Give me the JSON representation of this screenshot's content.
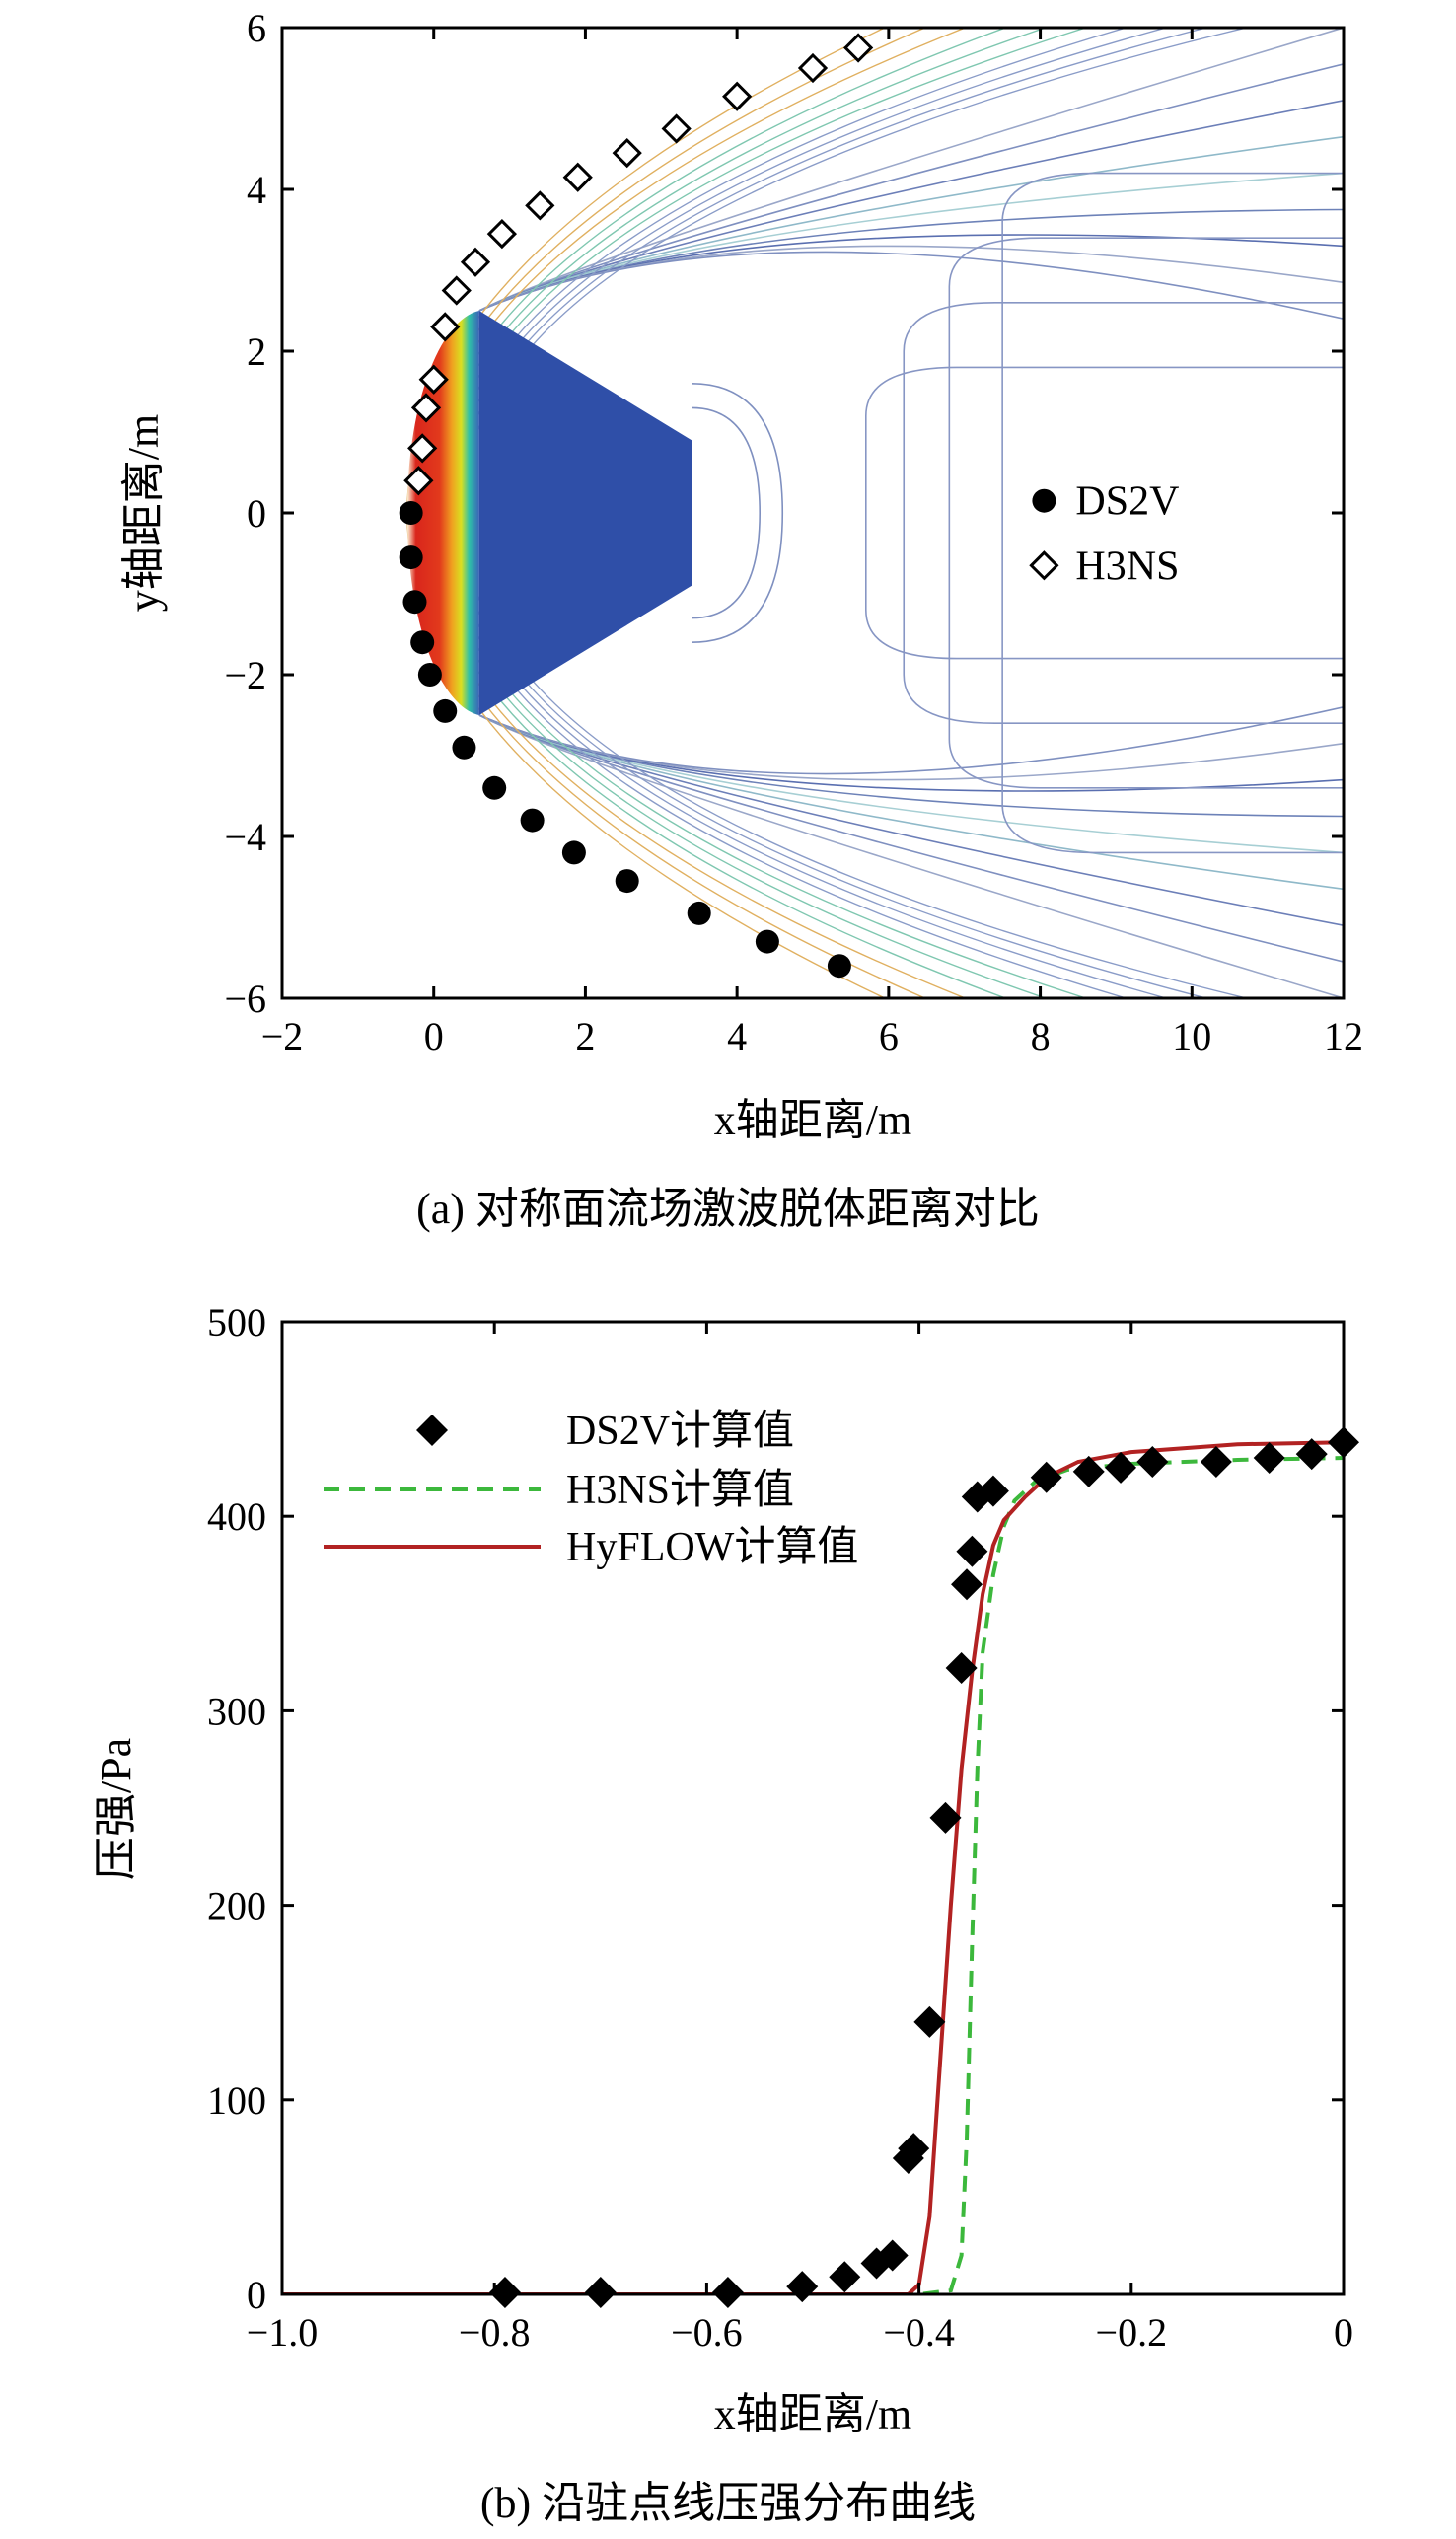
{
  "charts": [
    {
      "caption": "(a) 对称面流场激波脱体距离对比",
      "chart_data": {
        "type": "scatter",
        "title": "",
        "xlabel": "x轴距离/m",
        "ylabel": "y轴距离/m",
        "xlim": [
          -2,
          12
        ],
        "ylim": [
          -6,
          6
        ],
        "x_ticks": [
          -2,
          0,
          2,
          4,
          6,
          8,
          10,
          12
        ],
        "y_ticks": [
          -6,
          -4,
          -2,
          0,
          2,
          4,
          6
        ],
        "legend_position": "right",
        "background": "contour plot of flow field with vehicle body",
        "series": [
          {
            "name": "DS2V",
            "marker": "filled-circle",
            "color": "#000000",
            "points": [
              [
                -0.3,
                0.0
              ],
              [
                -0.3,
                -0.55
              ],
              [
                -0.25,
                -1.1
              ],
              [
                -0.15,
                -1.6
              ],
              [
                -0.05,
                -2.0
              ],
              [
                0.15,
                -2.45
              ],
              [
                0.4,
                -2.9
              ],
              [
                0.8,
                -3.4
              ],
              [
                1.3,
                -3.8
              ],
              [
                1.85,
                -4.2
              ],
              [
                2.55,
                -4.55
              ],
              [
                3.5,
                -4.95
              ],
              [
                4.4,
                -5.3
              ],
              [
                5.35,
                -5.6
              ]
            ]
          },
          {
            "name": "H3NS",
            "marker": "open-diamond",
            "color": "#000000",
            "points": [
              [
                -0.2,
                0.4
              ],
              [
                -0.15,
                0.8
              ],
              [
                -0.1,
                1.3
              ],
              [
                0.0,
                1.65
              ],
              [
                0.15,
                2.3
              ],
              [
                0.3,
                2.75
              ],
              [
                0.55,
                3.1
              ],
              [
                0.9,
                3.45
              ],
              [
                1.4,
                3.8
              ],
              [
                1.9,
                4.15
              ],
              [
                2.55,
                4.45
              ],
              [
                3.2,
                4.75
              ],
              [
                4.0,
                5.15
              ],
              [
                5.0,
                5.5
              ],
              [
                5.6,
                5.75
              ]
            ]
          }
        ]
      }
    },
    {
      "caption": "(b) 沿驻点线压强分布曲线",
      "chart_data": {
        "type": "line",
        "title": "",
        "xlabel": "x轴距离/m",
        "ylabel": "压强/Pa",
        "xlim": [
          -1.0,
          0
        ],
        "ylim": [
          0,
          500
        ],
        "x_ticks": [
          -1.0,
          -0.8,
          -0.6,
          -0.4,
          -0.2,
          0
        ],
        "x_tick_labels": [
          "−1.0",
          "−0.8",
          "−0.6",
          "−0.4",
          "−0.2",
          "0"
        ],
        "y_ticks": [
          0,
          100,
          200,
          300,
          400,
          500
        ],
        "legend_position": "top-left",
        "series": [
          {
            "name": "DS2V计算值",
            "style": "filled-diamond",
            "color": "#000000",
            "points": [
              [
                -0.79,
                1
              ],
              [
                -0.7,
                1
              ],
              [
                -0.58,
                1
              ],
              [
                -0.51,
                4
              ],
              [
                -0.47,
                9
              ],
              [
                -0.44,
                16
              ],
              [
                -0.425,
                20
              ],
              [
                -0.41,
                70
              ],
              [
                -0.405,
                75
              ],
              [
                -0.39,
                140
              ],
              [
                -0.375,
                245
              ],
              [
                -0.36,
                322
              ],
              [
                -0.355,
                365
              ],
              [
                -0.35,
                382
              ],
              [
                -0.345,
                410
              ],
              [
                -0.33,
                413
              ],
              [
                -0.28,
                420
              ],
              [
                -0.24,
                423
              ],
              [
                -0.21,
                425
              ],
              [
                -0.18,
                428
              ],
              [
                -0.12,
                428
              ],
              [
                -0.07,
                430
              ],
              [
                -0.03,
                432
              ],
              [
                0.0,
                438
              ]
            ]
          },
          {
            "name": "H3NS计算值",
            "style": "dashed",
            "color": "#3cb83c",
            "points": [
              [
                -1.0,
                0
              ],
              [
                -0.4,
                0
              ],
              [
                -0.37,
                2
              ],
              [
                -0.36,
                20
              ],
              [
                -0.355,
                80
              ],
              [
                -0.35,
                180
              ],
              [
                -0.345,
                270
              ],
              [
                -0.34,
                330
              ],
              [
                -0.33,
                370
              ],
              [
                -0.32,
                395
              ],
              [
                -0.31,
                408
              ],
              [
                -0.29,
                418
              ],
              [
                -0.26,
                424
              ],
              [
                -0.2,
                427
              ],
              [
                -0.1,
                429
              ],
              [
                0.0,
                430
              ]
            ]
          },
          {
            "name": "HyFLOW计算值",
            "style": "solid",
            "color": "#b22222",
            "points": [
              [
                -1.0,
                0
              ],
              [
                -0.41,
                0
              ],
              [
                -0.4,
                5
              ],
              [
                -0.39,
                40
              ],
              [
                -0.38,
                120
              ],
              [
                -0.37,
                200
              ],
              [
                -0.36,
                270
              ],
              [
                -0.35,
                320
              ],
              [
                -0.34,
                360
              ],
              [
                -0.33,
                385
              ],
              [
                -0.32,
                398
              ],
              [
                -0.3,
                410
              ],
              [
                -0.28,
                420
              ],
              [
                -0.25,
                428
              ],
              [
                -0.2,
                433
              ],
              [
                -0.1,
                437
              ],
              [
                0.0,
                438
              ]
            ]
          }
        ]
      }
    }
  ]
}
